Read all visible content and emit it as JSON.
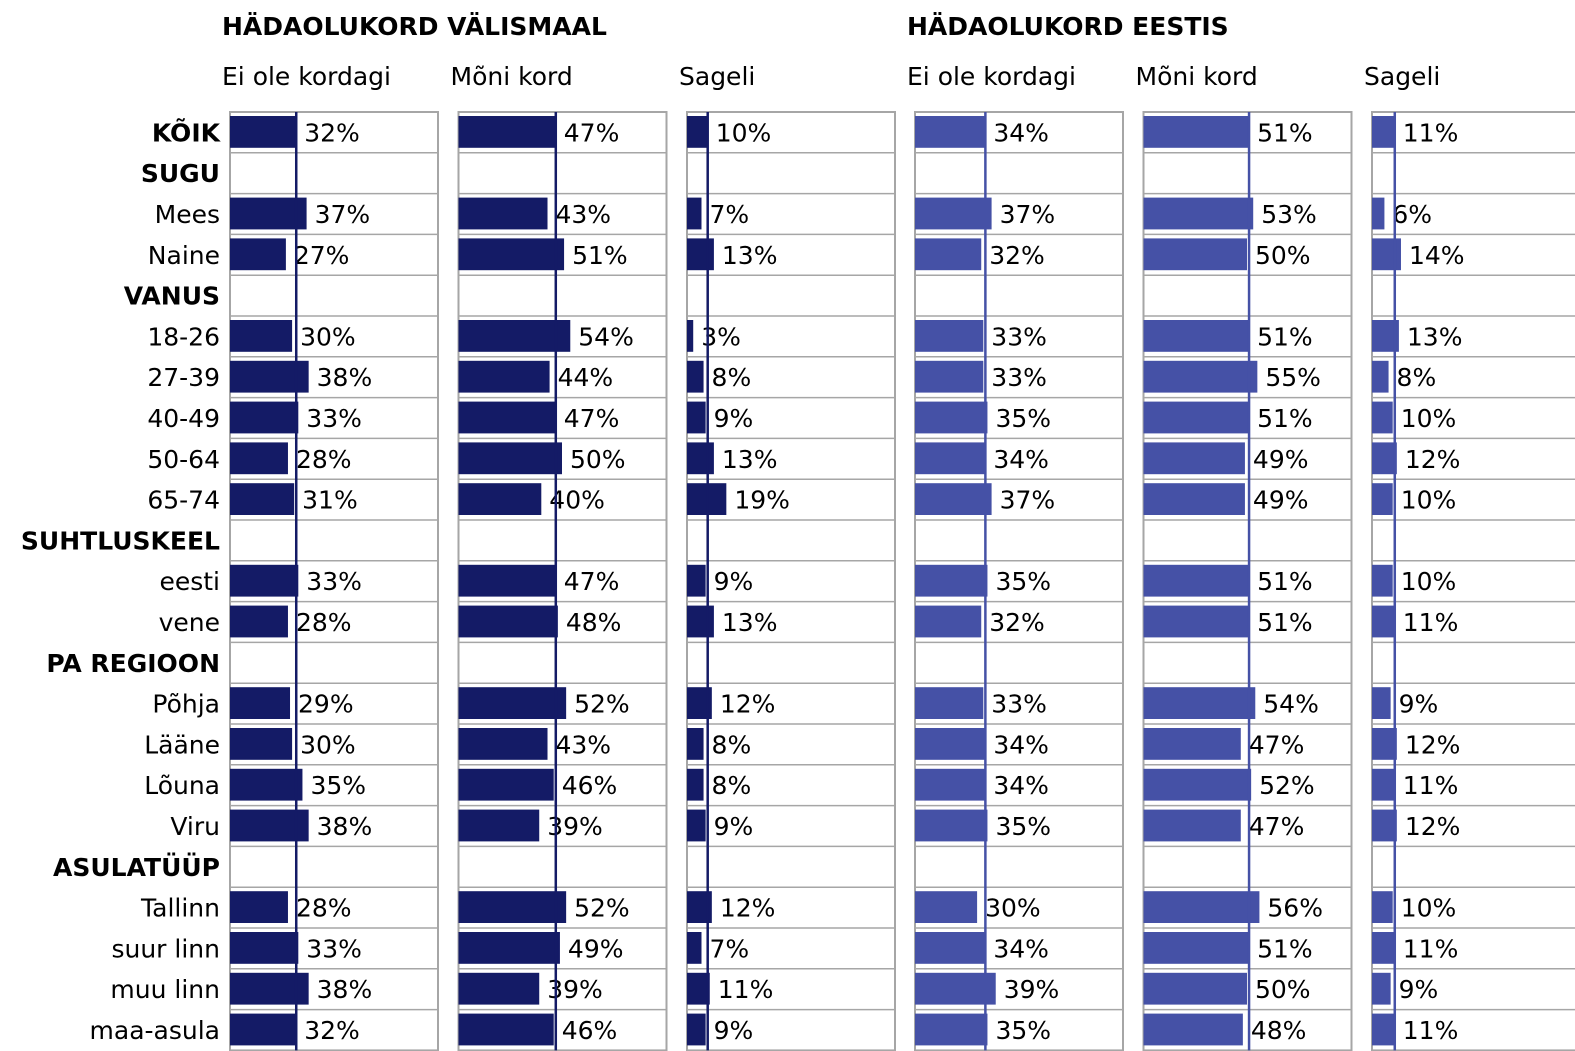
{
  "chart_data": {
    "type": "bar",
    "xlim": [
      0,
      100
    ],
    "categories": [
      "KÕIK",
      "SUGU",
      "Mees",
      "Naine",
      "VANUS",
      "18-26",
      "27-39",
      "40-49",
      "50-64",
      "65-74",
      "SUHTLUSKEEL",
      "eesti",
      "vene",
      "PA REGIOON",
      "Põhja",
      "Lääne",
      "Lõuna",
      "Viru",
      "ASULATÜÜP",
      "Tallinn",
      "suur linn",
      "muu linn",
      "maa-asula"
    ],
    "bold": [
      true,
      true,
      false,
      false,
      true,
      false,
      false,
      false,
      false,
      false,
      true,
      false,
      false,
      true,
      false,
      false,
      false,
      false,
      true,
      false,
      false,
      false,
      false
    ],
    "groups": [
      {
        "title": "HÄDAOLUKORD VÄLISMAAL",
        "color": "#141b66",
        "series": [
          {
            "name": "Ei ole kordagi",
            "values": [
              32,
              null,
              37,
              27,
              null,
              30,
              38,
              33,
              28,
              31,
              null,
              33,
              28,
              null,
              29,
              30,
              35,
              38,
              null,
              28,
              33,
              38,
              32
            ],
            "value_labels": [
              "32%",
              null,
              "37%",
              "27%",
              null,
              "30%",
              "38%",
              "33%",
              "28%",
              "31%",
              null,
              "33%",
              "28%",
              null,
              "29%",
              "30%",
              "35%",
              "38%",
              null,
              "28%",
              "33%",
              "38%",
              "32%"
            ],
            "value_colors": [
              null,
              null,
              "#00b050",
              "#ff0000",
              null,
              null,
              "#00b050",
              null,
              null,
              null,
              null,
              null,
              null,
              null,
              null,
              null,
              null,
              null,
              null,
              null,
              null,
              null,
              null
            ]
          },
          {
            "name": "Mõni kord",
            "values": [
              47,
              null,
              43,
              51,
              null,
              54,
              44,
              47,
              50,
              40,
              null,
              47,
              48,
              null,
              52,
              43,
              46,
              39,
              null,
              52,
              49,
              39,
              46
            ],
            "value_labels": [
              "47%",
              null,
              "43%",
              "51%",
              null,
              "54%",
              "44%",
              "47%",
              "50%",
              "40%",
              null,
              "47%",
              "48%",
              null,
              "52%",
              "43%",
              "46%",
              "39%",
              null,
              "52%",
              "49%",
              "39%",
              "46%"
            ],
            "value_colors": [
              null,
              null,
              "#ff0000",
              "#00b050",
              null,
              null,
              null,
              null,
              null,
              null,
              null,
              null,
              null,
              null,
              null,
              null,
              null,
              "#ff0000",
              null,
              null,
              null,
              "#ff0000",
              null
            ]
          },
          {
            "name": "Sageli",
            "values": [
              10,
              null,
              7,
              13,
              null,
              3,
              8,
              9,
              13,
              19,
              null,
              9,
              13,
              null,
              12,
              8,
              8,
              9,
              null,
              12,
              7,
              11,
              9
            ],
            "value_labels": [
              "10%",
              null,
              "7%",
              "13%",
              null,
              "3%",
              "8%",
              "9%",
              "13%",
              "19%",
              null,
              "9%",
              "13%",
              null,
              "12%",
              "8%",
              "8%",
              "9%",
              null,
              "12%",
              "7%",
              "11%",
              "9%"
            ],
            "value_colors": [
              null,
              null,
              "#ff0000",
              "#00b050",
              null,
              "#ff0000",
              null,
              null,
              null,
              "#00b050",
              null,
              null,
              null,
              null,
              null,
              null,
              null,
              null,
              null,
              null,
              null,
              null,
              null
            ]
          }
        ]
      },
      {
        "title": "HÄDAOLUKORD EESTIS",
        "color": "#4551a6",
        "series": [
          {
            "name": "Ei ole kordagi",
            "values": [
              34,
              null,
              37,
              32,
              null,
              33,
              33,
              35,
              34,
              37,
              null,
              35,
              32,
              null,
              33,
              34,
              34,
              35,
              null,
              30,
              34,
              39,
              35
            ],
            "value_labels": [
              "34%",
              null,
              "37%",
              "32%",
              null,
              "33%",
              "33%",
              "35%",
              "34%",
              "37%",
              null,
              "35%",
              "32%",
              null,
              "33%",
              "34%",
              "34%",
              "35%",
              null,
              "30%",
              "34%",
              "39%",
              "35%"
            ],
            "value_colors": [
              null,
              null,
              null,
              null,
              null,
              null,
              null,
              null,
              null,
              null,
              null,
              null,
              null,
              null,
              null,
              null,
              null,
              null,
              null,
              null,
              null,
              null,
              null
            ]
          },
          {
            "name": "Mõni kord",
            "values": [
              51,
              null,
              53,
              50,
              null,
              51,
              55,
              51,
              49,
              49,
              null,
              51,
              51,
              null,
              54,
              47,
              52,
              47,
              null,
              56,
              51,
              50,
              48
            ],
            "value_labels": [
              "51%",
              null,
              "53%",
              "50%",
              null,
              "51%",
              "55%",
              "51%",
              "49%",
              "49%",
              null,
              "51%",
              "51%",
              null,
              "54%",
              "47%",
              "52%",
              "47%",
              null,
              "56%",
              "51%",
              "50%",
              "48%"
            ],
            "value_colors": [
              null,
              null,
              null,
              null,
              null,
              null,
              null,
              null,
              null,
              null,
              null,
              null,
              null,
              null,
              null,
              null,
              null,
              null,
              null,
              null,
              null,
              null,
              null
            ]
          },
          {
            "name": "Sageli",
            "values": [
              11,
              null,
              6,
              14,
              null,
              13,
              8,
              10,
              12,
              10,
              null,
              10,
              11,
              null,
              9,
              12,
              11,
              12,
              null,
              10,
              11,
              9,
              11
            ],
            "value_labels": [
              "11%",
              null,
              "6%",
              "14%",
              null,
              "13%",
              "8%",
              "10%",
              "12%",
              "10%",
              null,
              "10%",
              "11%",
              null,
              "9%",
              "12%",
              "11%",
              "12%",
              null,
              "10%",
              "11%",
              "9%",
              "11%"
            ],
            "value_colors": [
              null,
              null,
              "#ff0000",
              "#00b050",
              null,
              null,
              null,
              null,
              null,
              null,
              null,
              null,
              null,
              null,
              null,
              null,
              null,
              null,
              null,
              null,
              null,
              null,
              null
            ]
          }
        ]
      }
    ]
  }
}
